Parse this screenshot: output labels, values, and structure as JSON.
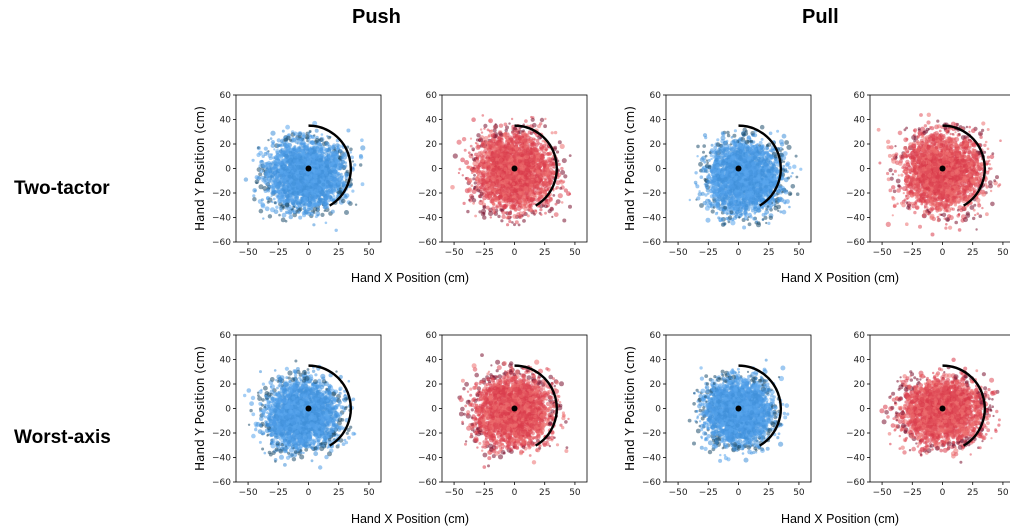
{
  "headers": {
    "push": "Push",
    "pull": "Pull"
  },
  "rows": {
    "two_tactor": "Two-tactor",
    "worst_axis": "Worst-axis"
  },
  "axis_labels": {
    "x": "Hand X Position (cm)",
    "y": "Hand Y Position (cm)"
  },
  "colors": {
    "blue": "#4d9be6",
    "blue_dark": "#1f4e6e",
    "red": "#e04f5a",
    "red_dark": "#7a1230",
    "arc": "#000000"
  },
  "chart_data": [
    {
      "type": "scatter",
      "group": "Push",
      "row": "Two-tactor",
      "color": "blue",
      "xlabel": "",
      "ylabel": "Hand Y Position (cm)",
      "xlim": [
        -60,
        60
      ],
      "ylim": [
        -60,
        60
      ],
      "xticks": [
        -50,
        -25,
        0,
        25,
        50
      ],
      "yticks": [
        -60,
        -40,
        -20,
        0,
        20,
        40,
        60
      ],
      "target_point": [
        0,
        0
      ],
      "arc": {
        "center": [
          0,
          0
        ],
        "radius": 35,
        "from_deg": -60,
        "to_deg": 90
      },
      "spread": {
        "x": [
          -60,
          55
        ],
        "y": [
          -55,
          45
        ]
      }
    },
    {
      "type": "scatter",
      "group": "Push",
      "row": "Two-tactor",
      "color": "red",
      "xlim": [
        -60,
        60
      ],
      "ylim": [
        -60,
        60
      ],
      "xticks": [
        -50,
        -25,
        0,
        25,
        50
      ],
      "yticks": [
        -60,
        -40,
        -20,
        0,
        20,
        40,
        60
      ],
      "target_point": [
        0,
        0
      ],
      "arc": {
        "center": [
          0,
          0
        ],
        "radius": 35,
        "from_deg": -60,
        "to_deg": 90
      },
      "spread": {
        "x": [
          -60,
          60
        ],
        "y": [
          -60,
          55
        ]
      }
    },
    {
      "type": "scatter",
      "group": "Pull",
      "row": "Two-tactor",
      "color": "blue",
      "xlabel": "",
      "ylabel": "Hand Y Position (cm)",
      "xlim": [
        -60,
        60
      ],
      "ylim": [
        -60,
        60
      ],
      "xticks": [
        -50,
        -25,
        0,
        25,
        50
      ],
      "yticks": [
        -60,
        -40,
        -20,
        0,
        20,
        40,
        60
      ],
      "target_point": [
        0,
        0
      ],
      "arc": {
        "center": [
          0,
          0
        ],
        "radius": 35,
        "from_deg": -60,
        "to_deg": 90
      },
      "spread": {
        "x": [
          -50,
          60
        ],
        "y": [
          -60,
          45
        ]
      }
    },
    {
      "type": "scatter",
      "group": "Pull",
      "row": "Two-tactor",
      "color": "red",
      "xlim": [
        -60,
        60
      ],
      "ylim": [
        -60,
        60
      ],
      "xticks": [
        -50,
        -25,
        0,
        25,
        50
      ],
      "yticks": [
        -60,
        -40,
        -20,
        0,
        20,
        40,
        60
      ],
      "target_point": [
        0,
        0
      ],
      "arc": {
        "center": [
          0,
          0
        ],
        "radius": 35,
        "from_deg": -60,
        "to_deg": 90
      },
      "spread": {
        "x": [
          -60,
          60
        ],
        "y": [
          -60,
          55
        ]
      }
    },
    {
      "type": "scatter",
      "group": "Push",
      "row": "Worst-axis",
      "color": "blue",
      "xlabel": "",
      "ylabel": "Hand Y Position (cm)",
      "xlim": [
        -60,
        60
      ],
      "ylim": [
        -60,
        60
      ],
      "xticks": [
        -50,
        -25,
        0,
        25,
        50
      ],
      "yticks": [
        -60,
        -40,
        -20,
        0,
        20,
        40,
        60
      ],
      "target_point": [
        0,
        0
      ],
      "arc": {
        "center": [
          0,
          0
        ],
        "radius": 35,
        "from_deg": -60,
        "to_deg": 90
      },
      "spread": {
        "x": [
          -60,
          50
        ],
        "y": [
          -55,
          45
        ]
      }
    },
    {
      "type": "scatter",
      "group": "Push",
      "row": "Worst-axis",
      "color": "red",
      "xlim": [
        -60,
        60
      ],
      "ylim": [
        -60,
        60
      ],
      "xticks": [
        -50,
        -25,
        0,
        25,
        50
      ],
      "yticks": [
        -60,
        -40,
        -20,
        0,
        20,
        40,
        60
      ],
      "target_point": [
        0,
        0
      ],
      "arc": {
        "center": [
          0,
          0
        ],
        "radius": 35,
        "from_deg": -60,
        "to_deg": 90
      },
      "spread": {
        "x": [
          -58,
          55
        ],
        "y": [
          -55,
          50
        ]
      }
    },
    {
      "type": "scatter",
      "group": "Pull",
      "row": "Worst-axis",
      "color": "blue",
      "xlabel": "",
      "ylabel": "Hand Y Position (cm)",
      "xlim": [
        -60,
        60
      ],
      "ylim": [
        -60,
        60
      ],
      "xticks": [
        -50,
        -25,
        0,
        25,
        50
      ],
      "yticks": [
        -60,
        -40,
        -20,
        0,
        20,
        40,
        60
      ],
      "target_point": [
        0,
        0
      ],
      "arc": {
        "center": [
          0,
          0
        ],
        "radius": 35,
        "from_deg": -60,
        "to_deg": 90
      },
      "spread": {
        "x": [
          -50,
          50
        ],
        "y": [
          -50,
          45
        ]
      }
    },
    {
      "type": "scatter",
      "group": "Pull",
      "row": "Worst-axis",
      "color": "red",
      "xlim": [
        -60,
        60
      ],
      "ylim": [
        -60,
        60
      ],
      "xticks": [
        -50,
        -25,
        0,
        25,
        50
      ],
      "yticks": [
        -60,
        -40,
        -20,
        0,
        20,
        40,
        60
      ],
      "target_point": [
        0,
        0
      ],
      "arc": {
        "center": [
          0,
          0
        ],
        "radius": 35,
        "from_deg": -60,
        "to_deg": 90
      },
      "spread": {
        "x": [
          -60,
          60
        ],
        "y": [
          -50,
          45
        ]
      }
    }
  ]
}
